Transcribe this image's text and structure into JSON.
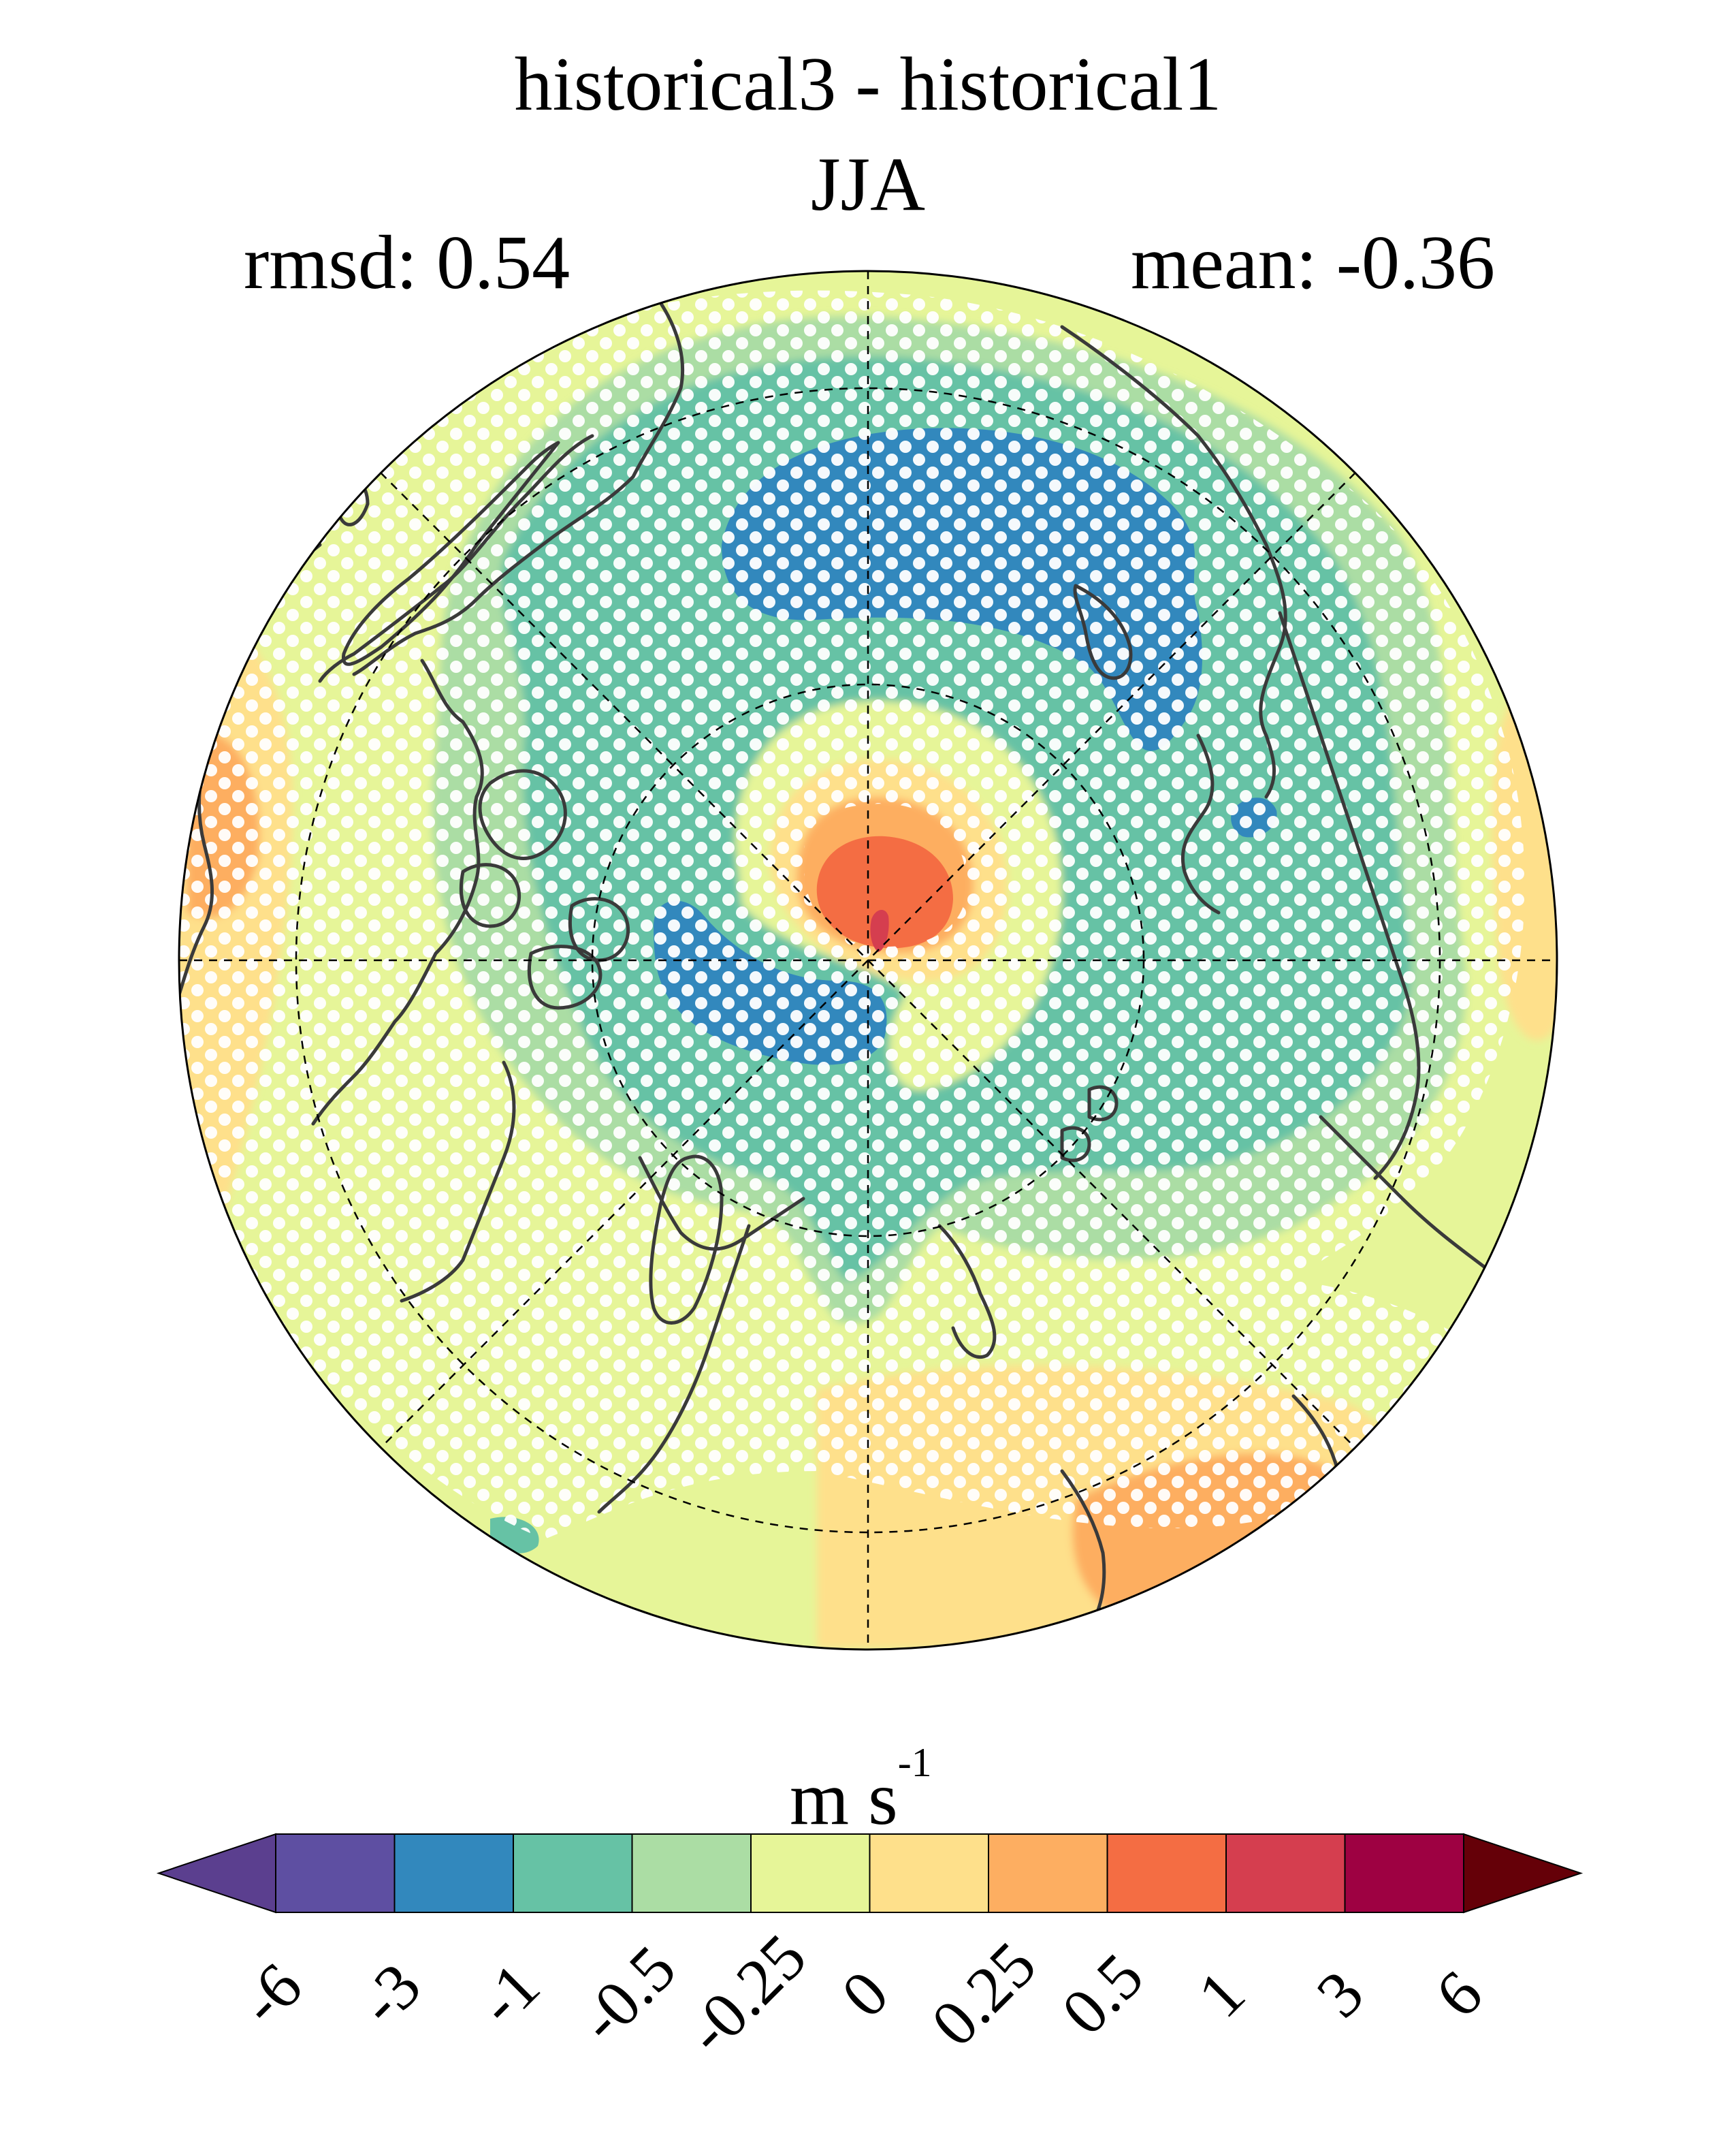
{
  "chart_data": {
    "type": "polar-stereographic-contour-map",
    "title": "historical3 - historical1",
    "subtitle": "JJA",
    "stats": {
      "rmsd_label": "rmsd: 0.54",
      "mean_label": "mean: -0.36",
      "rmsd": 0.54,
      "mean": -0.36
    },
    "region": "Northern Hemisphere polar cap",
    "units_main": "m s",
    "units_exp": "-1",
    "stippling": "white dots mark significant differences",
    "colorbar": {
      "levels": [
        "-6",
        "-3",
        "-1",
        "-0.5",
        "-0.25",
        "0",
        "0.25",
        "0.5",
        "1",
        "3",
        "6"
      ],
      "colors": [
        "#5e4fa2",
        "#3288bd",
        "#66c2a5",
        "#abdda4",
        "#e6f598",
        "#fee08b",
        "#fdae61",
        "#f46d43",
        "#d53e4f",
        "#9e0142"
      ],
      "under_color": "#5b3f8f",
      "over_color": "#650008",
      "extend": "both"
    }
  }
}
